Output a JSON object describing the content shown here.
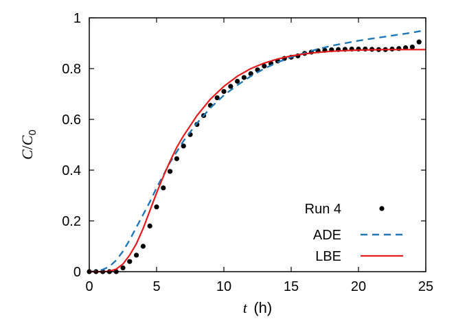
{
  "chart_data": {
    "type": "line",
    "xlabel": {
      "var": "t",
      "unit": "(h)"
    },
    "ylabel": {
      "num": "C",
      "den": "C",
      "sub": "0"
    },
    "xlim": [
      0,
      25
    ],
    "ylim": [
      0,
      1
    ],
    "xticks": [
      0,
      5,
      10,
      15,
      20,
      25
    ],
    "yticks": [
      0,
      0.2,
      0.4,
      0.6,
      0.8,
      1
    ],
    "xtick_labels": [
      "0",
      "5",
      "10",
      "15",
      "20",
      "25"
    ],
    "ytick_labels": [
      "0",
      "0.2",
      "0.4",
      "0.6",
      "0.8",
      "1"
    ],
    "grid": false,
    "legend": "bottom-right",
    "series": [
      {
        "name": "Run 4",
        "kind": "scatter",
        "color": "#000000",
        "x": [
          0,
          0.5,
          1,
          1.5,
          2,
          2.5,
          3,
          3.5,
          4,
          4.5,
          5,
          5.5,
          6,
          6.5,
          7,
          7.5,
          8,
          8.5,
          9,
          9.5,
          10,
          10.5,
          11,
          11.5,
          12,
          12.5,
          13,
          13.5,
          14,
          14.5,
          15,
          15.5,
          16,
          16.5,
          17,
          17.5,
          18,
          18.5,
          19,
          19.5,
          20,
          20.5,
          21,
          21.5,
          22,
          22.5,
          23,
          23.5,
          24,
          24.5
        ],
        "y": [
          0,
          0,
          0,
          0,
          0,
          0.015,
          0.04,
          0.065,
          0.1,
          0.18,
          0.255,
          0.33,
          0.395,
          0.445,
          0.495,
          0.54,
          0.58,
          0.615,
          0.655,
          0.685,
          0.71,
          0.73,
          0.75,
          0.765,
          0.78,
          0.795,
          0.81,
          0.82,
          0.83,
          0.84,
          0.845,
          0.85,
          0.86,
          0.865,
          0.87,
          0.872,
          0.874,
          0.875,
          0.876,
          0.877,
          0.877,
          0.877,
          0.876,
          0.875,
          0.875,
          0.877,
          0.879,
          0.882,
          0.885,
          0.905
        ]
      },
      {
        "name": "ADE",
        "kind": "dashed",
        "color": "#1f77b4",
        "x": [
          0,
          0.5,
          1,
          1.5,
          2,
          2.5,
          3,
          3.5,
          4,
          4.5,
          5,
          6,
          7,
          8,
          9,
          10,
          11,
          12,
          13,
          14,
          15,
          16,
          17,
          18,
          19,
          20,
          21,
          22,
          23,
          24,
          25
        ],
        "y": [
          0,
          0.002,
          0.008,
          0.02,
          0.045,
          0.08,
          0.125,
          0.175,
          0.225,
          0.275,
          0.33,
          0.43,
          0.515,
          0.585,
          0.645,
          0.695,
          0.735,
          0.77,
          0.8,
          0.825,
          0.845,
          0.862,
          0.877,
          0.89,
          0.9,
          0.91,
          0.918,
          0.926,
          0.934,
          0.942,
          0.952
        ]
      },
      {
        "name": "LBE",
        "kind": "solid",
        "color": "#e41a1c",
        "x": [
          0,
          1,
          1.5,
          2,
          2.5,
          3,
          3.5,
          4,
          4.5,
          5,
          5.5,
          6,
          6.5,
          7,
          7.5,
          8,
          9,
          10,
          11,
          12,
          13,
          14,
          15,
          16,
          17,
          18,
          19,
          20,
          21,
          22,
          23,
          24,
          25
        ],
        "y": [
          0,
          0,
          0.002,
          0.01,
          0.03,
          0.065,
          0.11,
          0.17,
          0.24,
          0.31,
          0.375,
          0.435,
          0.49,
          0.535,
          0.575,
          0.615,
          0.68,
          0.73,
          0.77,
          0.8,
          0.822,
          0.838,
          0.85,
          0.858,
          0.864,
          0.868,
          0.871,
          0.873,
          0.874,
          0.875,
          0.875,
          0.875,
          0.875
        ]
      }
    ]
  }
}
